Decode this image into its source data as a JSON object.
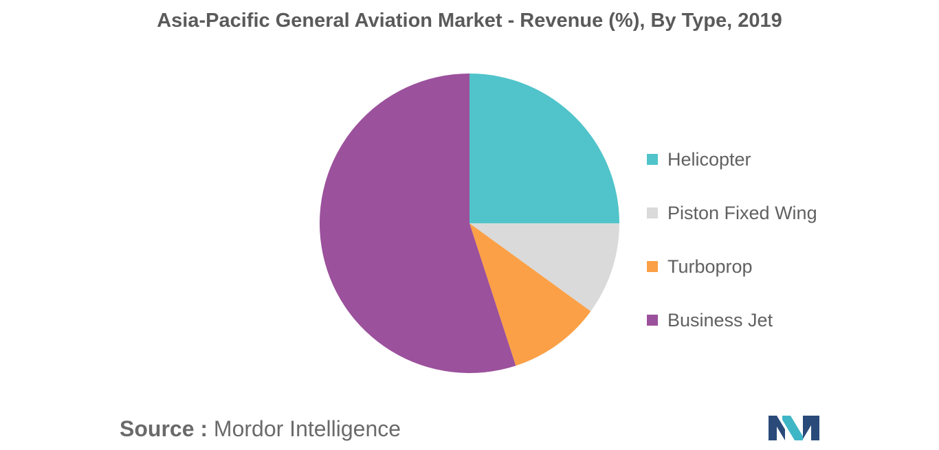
{
  "chart_data": {
    "type": "pie",
    "title": "Asia-Pacific General Aviation Market - Revenue (%), By Type, 2019",
    "slices": [
      {
        "label": "Helicopter",
        "value": 25,
        "color": "#50c4ca"
      },
      {
        "label": "Piston Fixed Wing",
        "value": 10,
        "color": "#dadada"
      },
      {
        "label": "Turboprop",
        "value": 10,
        "color": "#fba046"
      },
      {
        "label": "Business Jet",
        "value": 55,
        "color": "#9b519c"
      }
    ],
    "start_angle_deg": 0,
    "direction": "clockwise",
    "legend_position": "right"
  },
  "source": {
    "key": "Source :",
    "value": "Mordor Intelligence"
  },
  "logo": {
    "name": "mordor-intelligence-logo",
    "colors": [
      "#2a4a7a",
      "#3fb6c6"
    ]
  }
}
